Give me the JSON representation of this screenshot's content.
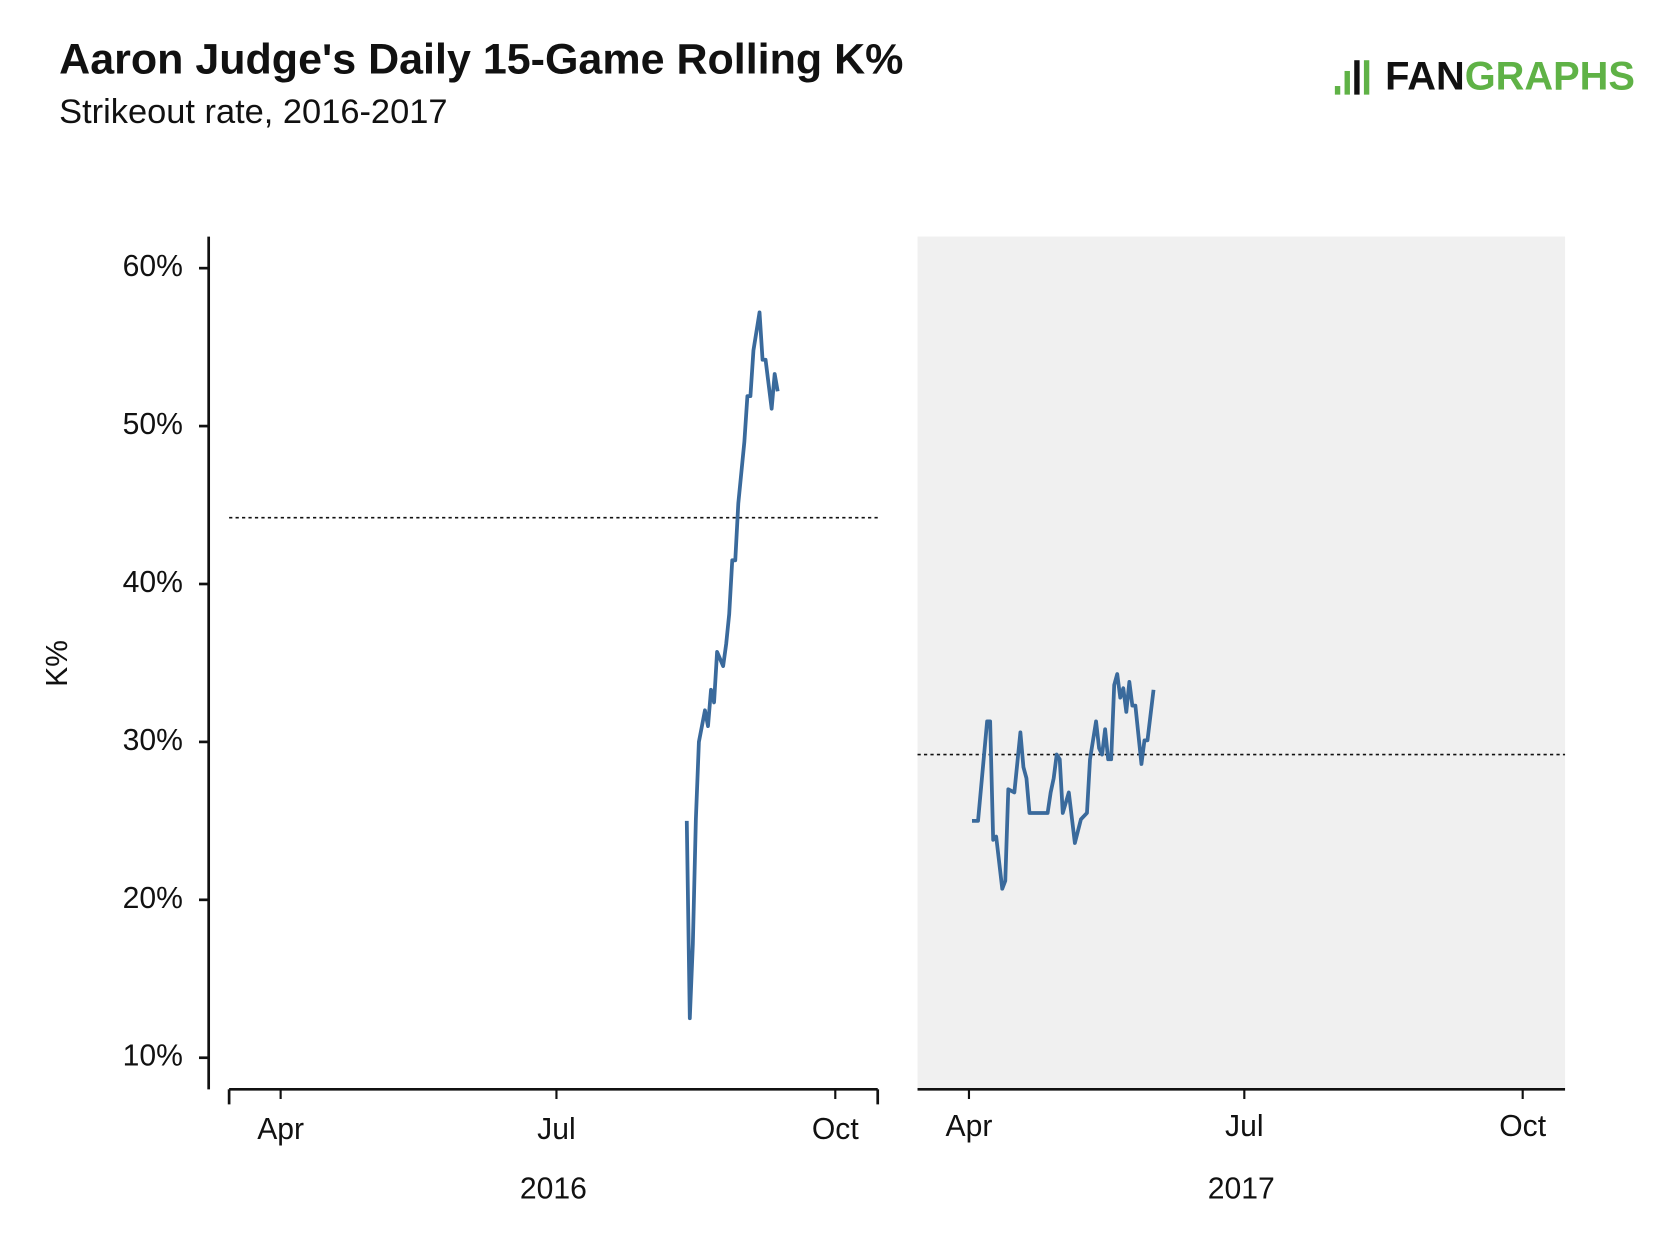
{
  "chart_data": {
    "type": "line",
    "title": "Aaron Judge's Daily 15-Game Rolling K%",
    "subtitle": "Strikeout rate, 2016-2017",
    "logo": [
      "FAN",
      "GRAPHS"
    ],
    "y_label": "K%",
    "ylim": [
      8,
      62
    ],
    "yticks": [
      {
        "value": 10,
        "label": "10%"
      },
      {
        "value": 20,
        "label": "20%"
      },
      {
        "value": 30,
        "label": "30%"
      },
      {
        "value": 40,
        "label": "40%"
      },
      {
        "value": 50,
        "label": "50%"
      },
      {
        "value": 60,
        "label": "60%"
      }
    ],
    "panels": [
      {
        "label": "2016",
        "background": "#ffffff",
        "color": "#3a6a9c",
        "xlim": [
          "2016-03-15",
          "2016-10-15"
        ],
        "xticks": [
          {
            "value": "2016-04-01",
            "label": "Apr"
          },
          {
            "value": "2016-07-01",
            "label": "Jul"
          },
          {
            "value": "2016-10-01",
            "label": "Oct"
          }
        ],
        "average": 44.2,
        "x": [
          "2016-08-13",
          "2016-08-14",
          "2016-08-15",
          "2016-08-16",
          "2016-08-17",
          "2016-08-19",
          "2016-08-20",
          "2016-08-21",
          "2016-08-22",
          "2016-08-23",
          "2016-08-25",
          "2016-08-26",
          "2016-08-27",
          "2016-08-28",
          "2016-08-29",
          "2016-08-30",
          "2016-09-01",
          "2016-09-02",
          "2016-09-03",
          "2016-09-04",
          "2016-09-06",
          "2016-09-07",
          "2016-09-08",
          "2016-09-10",
          "2016-09-11",
          "2016-09-12"
        ],
        "values": [
          25.0,
          12.5,
          17.2,
          25.1,
          30.0,
          32.0,
          31.0,
          33.3,
          32.5,
          35.7,
          34.8,
          36.2,
          38.1,
          41.5,
          41.5,
          45.1,
          49.0,
          51.9,
          51.9,
          54.8,
          57.2,
          54.2,
          54.2,
          51.1,
          53.3,
          52.2
        ]
      },
      {
        "label": "2017",
        "background": "#f0f0f0",
        "color": "#3a6a9c",
        "xlim": [
          "2017-03-15",
          "2017-10-15"
        ],
        "xticks": [
          {
            "value": "2017-04-01",
            "label": "Apr"
          },
          {
            "value": "2017-07-01",
            "label": "Jul"
          },
          {
            "value": "2017-10-01",
            "label": "Oct"
          }
        ],
        "average": 29.2,
        "x": [
          "2017-04-02",
          "2017-04-04",
          "2017-04-07",
          "2017-04-08",
          "2017-04-09",
          "2017-04-10",
          "2017-04-12",
          "2017-04-13",
          "2017-04-14",
          "2017-04-16",
          "2017-04-18",
          "2017-04-19",
          "2017-04-20",
          "2017-04-21",
          "2017-04-27",
          "2017-04-28",
          "2017-04-29",
          "2017-04-30",
          "2017-05-01",
          "2017-05-02",
          "2017-05-04",
          "2017-05-06",
          "2017-05-08",
          "2017-05-10",
          "2017-05-11",
          "2017-05-13",
          "2017-05-14",
          "2017-05-15",
          "2017-05-16",
          "2017-05-17",
          "2017-05-18",
          "2017-05-19",
          "2017-05-20",
          "2017-05-21",
          "2017-05-22",
          "2017-05-23",
          "2017-05-24",
          "2017-05-25",
          "2017-05-26",
          "2017-05-28",
          "2017-05-29",
          "2017-05-30",
          "2017-06-01"
        ],
        "values": [
          25.0,
          25.0,
          31.3,
          31.3,
          23.8,
          24.0,
          20.7,
          21.2,
          27.0,
          26.8,
          30.6,
          28.4,
          27.7,
          25.5,
          25.5,
          26.8,
          27.7,
          29.2,
          28.9,
          25.5,
          26.8,
          23.6,
          25.1,
          25.5,
          28.9,
          31.3,
          29.6,
          29.2,
          30.8,
          28.9,
          28.9,
          33.6,
          34.3,
          32.8,
          33.4,
          31.9,
          33.8,
          32.3,
          32.3,
          28.6,
          30.1,
          30.1,
          33.3
        ]
      }
    ]
  }
}
